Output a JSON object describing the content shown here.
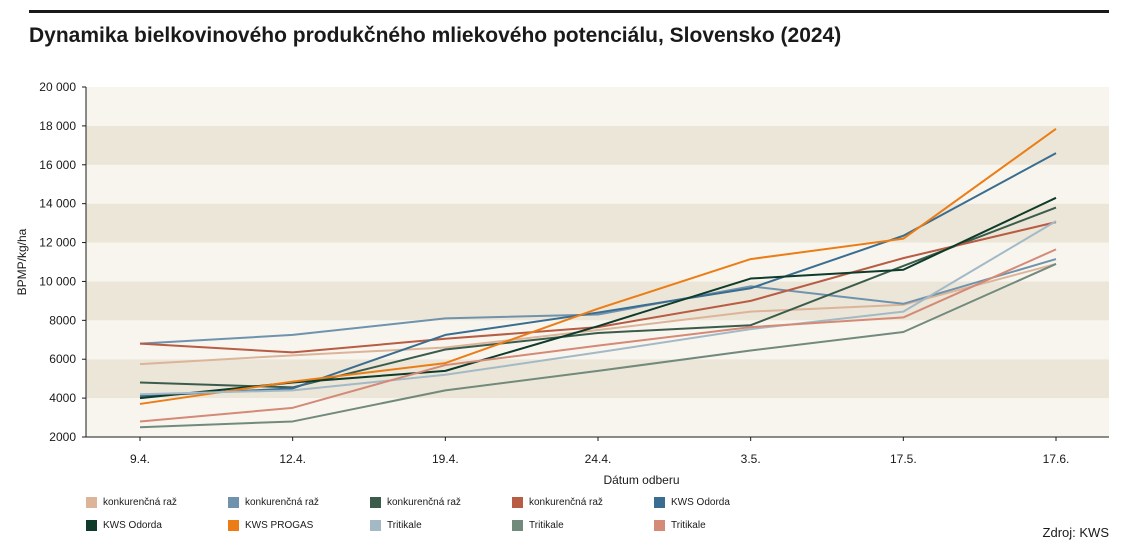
{
  "title": "Dynamika bielkovinového produkčného mliekového potenciálu, Slovensko (2024)",
  "source": "Zdroj: KWS",
  "chart_data": {
    "type": "line",
    "xlabel": "Dátum odberu",
    "ylabel": "BPMP/kg/ha",
    "categories": [
      "9.4.",
      "12.4.",
      "19.4.",
      "24.4.",
      "3.5.",
      "17.5.",
      "17.6."
    ],
    "ylim": [
      2000,
      20000
    ],
    "yticks": [
      2000,
      4000,
      6000,
      8000,
      10000,
      12000,
      14000,
      16000,
      18000,
      20000
    ],
    "ytick_labels": [
      "2000",
      "4000",
      "6000",
      "8000",
      "10 000",
      "12 000",
      "14 000",
      "16 000",
      "18 000",
      "20 000"
    ],
    "background_bands": true,
    "legend_position": "bottom",
    "series": [
      {
        "name": "konkurenčná raž",
        "color": "#dcb49a",
        "values": [
          5750,
          6200,
          6600,
          7500,
          8450,
          8800,
          10900
        ]
      },
      {
        "name": "konkurenčná raž",
        "color": "#6f93ad",
        "values": [
          6800,
          7250,
          8100,
          8300,
          9750,
          8850,
          11150
        ]
      },
      {
        "name": "konkurenčná raž",
        "color": "#3b5c4c",
        "values": [
          4800,
          4550,
          6500,
          7350,
          7750,
          10800,
          13800
        ]
      },
      {
        "name": "konkurenčná raž",
        "color": "#b85c44",
        "values": [
          6800,
          6350,
          7050,
          7650,
          9000,
          11200,
          13050
        ]
      },
      {
        "name": "KWS Odorda",
        "color": "#3a6d8f",
        "values": [
          4100,
          4500,
          7250,
          8400,
          9650,
          12350,
          16600
        ]
      },
      {
        "name": "KWS Odorda",
        "color": "#0e3b2a",
        "values": [
          4000,
          4800,
          5400,
          7700,
          10150,
          10600,
          14300
        ]
      },
      {
        "name": "KWS PROGAS",
        "color": "#ec7d16",
        "values": [
          3700,
          4850,
          5800,
          8600,
          11150,
          12200,
          17850
        ]
      },
      {
        "name": "Tritikale",
        "color": "#a3b9c6",
        "values": [
          4200,
          4400,
          5200,
          6350,
          7550,
          8450,
          13100
        ]
      },
      {
        "name": "Tritikale",
        "color": "#728a7c",
        "values": [
          2500,
          2800,
          4400,
          5400,
          6450,
          7400,
          10900
        ]
      },
      {
        "name": "Tritikale",
        "color": "#d48a76",
        "values": [
          2800,
          3500,
          5700,
          6700,
          7650,
          8150,
          11650
        ]
      }
    ]
  }
}
